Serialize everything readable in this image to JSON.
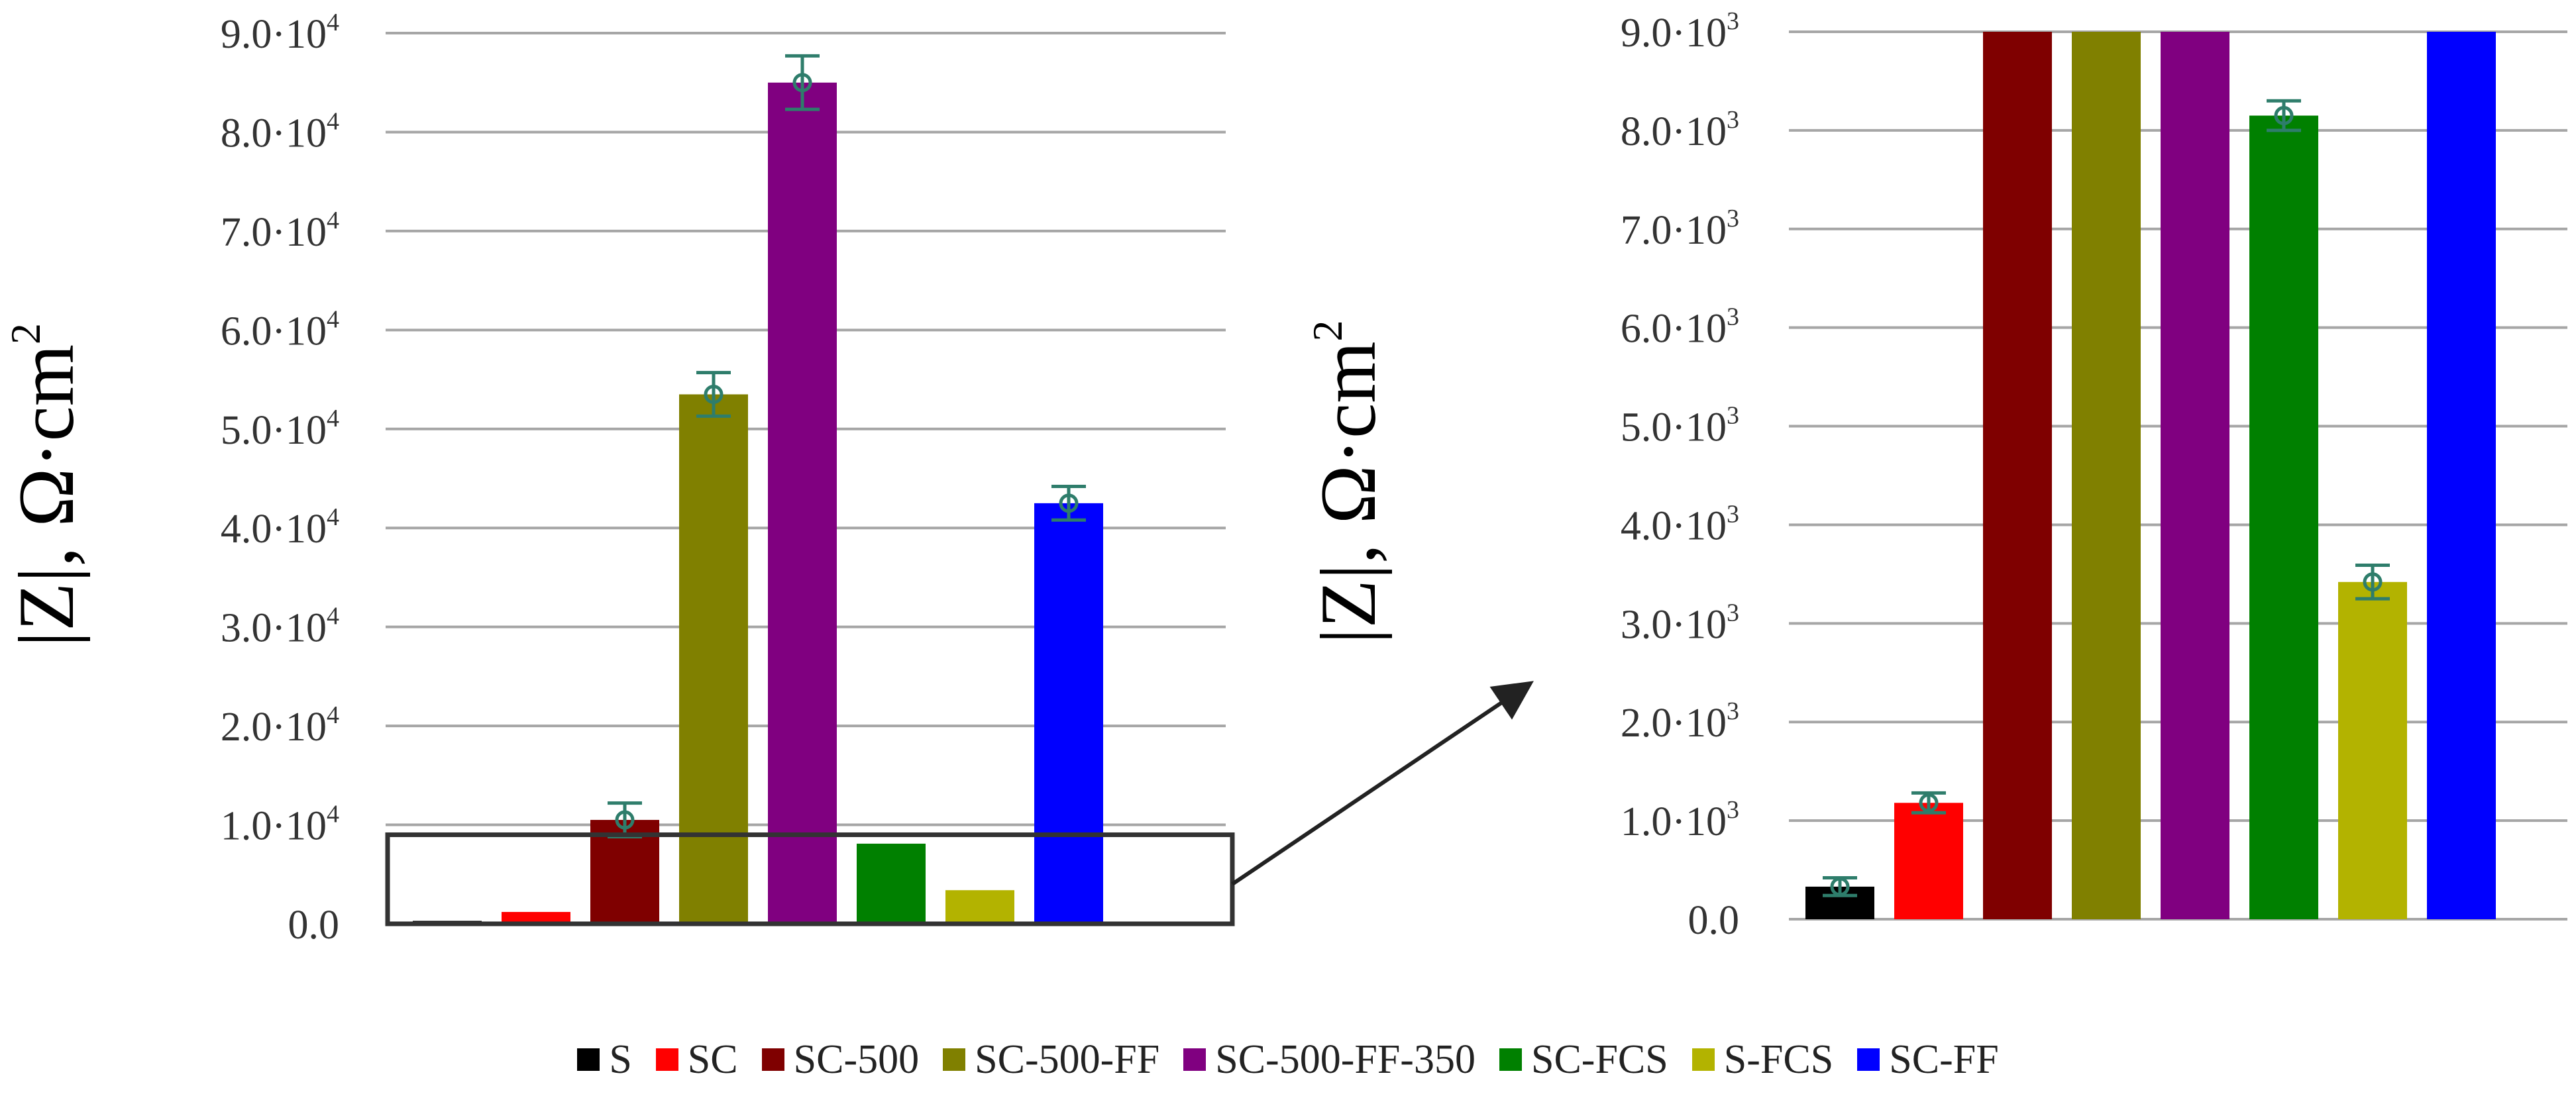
{
  "chart_data": [
    {
      "type": "bar",
      "panel": "left",
      "ylabel": "|Z|, Ω·cm²",
      "ylim": [
        0,
        90000
      ],
      "yticks": [
        {
          "value": 0,
          "mant": "0.0",
          "exp": ""
        },
        {
          "value": 10000,
          "mant": "1.0·10",
          "exp": "4"
        },
        {
          "value": 20000,
          "mant": "2.0·10",
          "exp": "4"
        },
        {
          "value": 30000,
          "mant": "3.0·10",
          "exp": "4"
        },
        {
          "value": 40000,
          "mant": "4.0·10",
          "exp": "4"
        },
        {
          "value": 50000,
          "mant": "5.0·10",
          "exp": "4"
        },
        {
          "value": 60000,
          "mant": "6.0·10",
          "exp": "4"
        },
        {
          "value": 70000,
          "mant": "7.0·10",
          "exp": "4"
        },
        {
          "value": 80000,
          "mant": "8.0·10",
          "exp": "4"
        },
        {
          "value": 90000,
          "mant": "9.0·10",
          "exp": "4"
        }
      ],
      "grid": true,
      "categories": [
        "S",
        "SC",
        "SC-500",
        "SC-500-FF",
        "SC-500-FF-350",
        "SC-FCS",
        "S-FCS",
        "SC-FF"
      ],
      "values": [
        300,
        1200,
        10500,
        53500,
        85000,
        8100,
        3400,
        42500
      ],
      "errors": [
        null,
        null,
        1700,
        2200,
        2700,
        null,
        null,
        1700
      ],
      "annotation": "rectangle around 0–9.0·10³ region with arrow pointing to zoomed panel"
    },
    {
      "type": "bar",
      "panel": "right",
      "ylabel": "|Z|, Ω·cm²",
      "ylim": [
        0,
        9000
      ],
      "yticks": [
        {
          "value": 0,
          "mant": "0.0",
          "exp": ""
        },
        {
          "value": 1000,
          "mant": "1.0·10",
          "exp": "3"
        },
        {
          "value": 2000,
          "mant": "2.0·10",
          "exp": "3"
        },
        {
          "value": 3000,
          "mant": "3.0·10",
          "exp": "3"
        },
        {
          "value": 4000,
          "mant": "4.0·10",
          "exp": "3"
        },
        {
          "value": 5000,
          "mant": "5.0·10",
          "exp": "3"
        },
        {
          "value": 6000,
          "mant": "6.0·10",
          "exp": "3"
        },
        {
          "value": 7000,
          "mant": "7.0·10",
          "exp": "3"
        },
        {
          "value": 8000,
          "mant": "8.0·10",
          "exp": "3"
        },
        {
          "value": 9000,
          "mant": "9.0·10",
          "exp": "3"
        }
      ],
      "grid": true,
      "categories": [
        "S",
        "SC",
        "SC-500",
        "SC-500-FF",
        "SC-500-FF-350",
        "SC-FCS",
        "S-FCS",
        "SC-FF"
      ],
      "values": [
        330,
        1180,
        9000,
        9000,
        9000,
        8150,
        3420,
        9000
      ],
      "errors": [
        90,
        100,
        null,
        null,
        null,
        150,
        170,
        null
      ],
      "clipped_at_max": [
        "SC-500",
        "SC-500-FF",
        "SC-500-FF-350",
        "SC-FF"
      ]
    }
  ],
  "series_colors": {
    "S": "#000000",
    "SC": "#ff0000",
    "SC-500": "#7f0000",
    "SC-500-FF": "#808000",
    "SC-500-FF-350": "#800080",
    "SC-FCS": "#008000",
    "S-FCS": "#b3b300",
    "SC-FF": "#0000ff"
  },
  "legend": [
    {
      "label": "S",
      "color": "#000000"
    },
    {
      "label": "SC",
      "color": "#ff0000"
    },
    {
      "label": "SC-500",
      "color": "#7f0000"
    },
    {
      "label": "SC-500-FF",
      "color": "#808000"
    },
    {
      "label": "SC-500-FF-350",
      "color": "#800080"
    },
    {
      "label": "SC-FCS",
      "color": "#008000"
    },
    {
      "label": "S-FCS",
      "color": "#b3b300"
    },
    {
      "label": "SC-FF",
      "color": "#0000ff"
    }
  ]
}
